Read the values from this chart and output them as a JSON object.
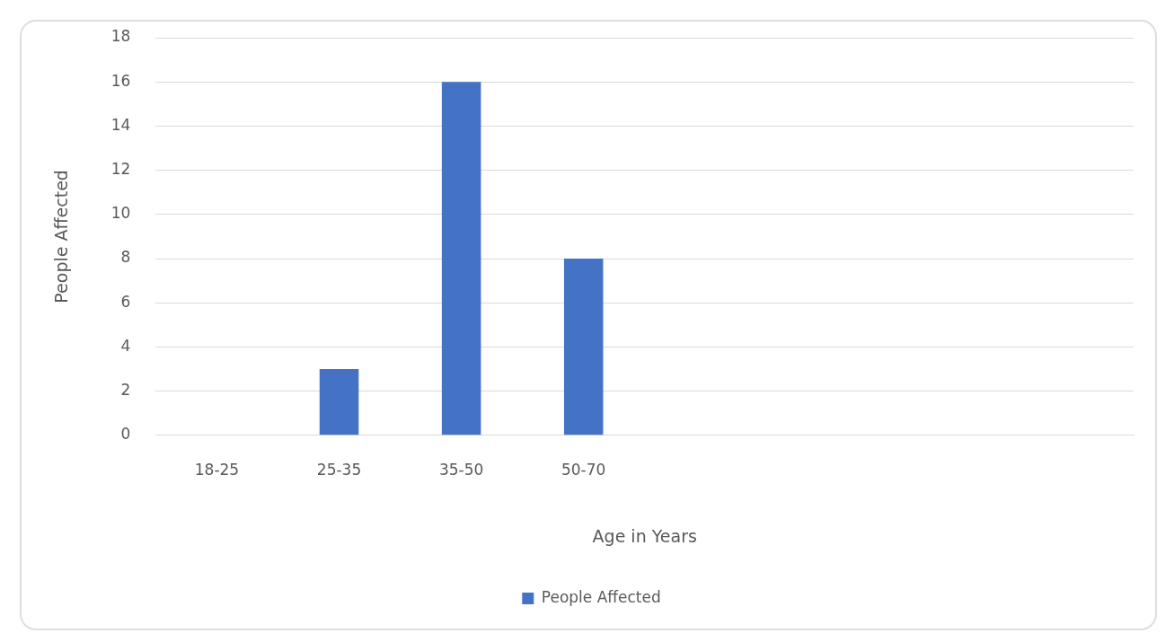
{
  "chart_data": {
    "type": "bar",
    "xlabel": "Age in Years",
    "ylabel": "People Affected",
    "categories": [
      "18-25",
      "25-35",
      "35-50",
      "50-70",
      null,
      null,
      null,
      null
    ],
    "series": [
      {
        "name": "People Affected",
        "color": "#4472c4",
        "values": [
          0,
          3,
          16,
          8,
          null,
          null,
          null,
          null
        ]
      }
    ],
    "ylim": [
      0,
      18
    ],
    "yticks": [
      0,
      2,
      4,
      6,
      8,
      10,
      12,
      14,
      16,
      18
    ],
    "grid": "y",
    "legend": "bottom"
  }
}
